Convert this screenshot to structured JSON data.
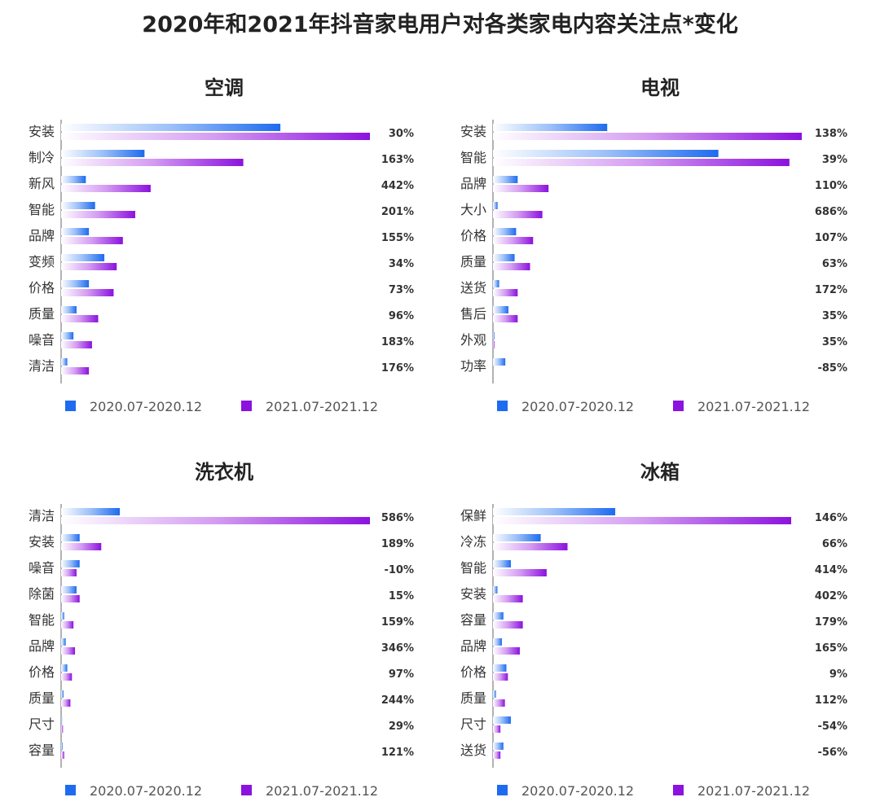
{
  "title": "2020年和2021年抖音家电用户对各类家电内容关注点*变化",
  "legend": {
    "series_2020": "2020.07-2020.12",
    "series_2021": "2021.07-2021.12"
  },
  "colors": {
    "series_2020": "#1e6bf0",
    "series_2021": "#8c12de",
    "axis": "#666666",
    "text": "#333333"
  },
  "chart_data": [
    {
      "type": "bar",
      "title": "空调",
      "categories": [
        "安装",
        "制冷",
        "新风",
        "智能",
        "品牌",
        "变频",
        "价格",
        "质量",
        "噪音",
        "清洁"
      ],
      "series": [
        {
          "name": "2020.07-2020.12",
          "values": [
            71,
            27,
            8,
            11,
            9,
            14,
            9,
            5,
            4,
            2
          ]
        },
        {
          "name": "2021.07-2021.12",
          "values": [
            100,
            59,
            29,
            24,
            20,
            18,
            17,
            12,
            10,
            9
          ]
        }
      ],
      "change_labels": [
        "30%",
        "163%",
        "442%",
        "201%",
        "155%",
        "34%",
        "73%",
        "96%",
        "183%",
        "176%"
      ],
      "xlim": [
        0,
        100
      ]
    },
    {
      "type": "bar",
      "title": "电视",
      "categories": [
        "安装",
        "智能",
        "品牌",
        "大小",
        "价格",
        "质量",
        "送货",
        "售后",
        "外观",
        "功率"
      ],
      "series": [
        {
          "name": "2020.07-2020.12",
          "values": [
            37,
            73,
            8,
            1.5,
            7.5,
            7,
            2,
            5,
            0.5,
            4
          ]
        },
        {
          "name": "2021.07-2021.12",
          "values": [
            100,
            96,
            18,
            16,
            13,
            12,
            8,
            8,
            0.5,
            0
          ]
        }
      ],
      "change_labels": [
        "138%",
        "39%",
        "110%",
        "686%",
        "107%",
        "63%",
        "172%",
        "35%",
        "35%",
        "-85%"
      ],
      "xlim": [
        0,
        100
      ]
    },
    {
      "type": "bar",
      "title": "洗衣机",
      "categories": [
        "清洁",
        "安装",
        "噪音",
        "除菌",
        "智能",
        "品牌",
        "价格",
        "质量",
        "尺寸",
        "容量"
      ],
      "series": [
        {
          "name": "2020.07-2020.12",
          "values": [
            19,
            6,
            6,
            5,
            1,
            1.5,
            2,
            0.8,
            0.3,
            0.5
          ]
        },
        {
          "name": "2021.07-2021.12",
          "values": [
            100,
            13,
            5,
            6,
            4,
            4.5,
            3.5,
            3,
            0.6,
            1
          ]
        }
      ],
      "change_labels": [
        "586%",
        "189%",
        "-10%",
        "15%",
        "159%",
        "346%",
        "97%",
        "244%",
        "29%",
        "121%"
      ],
      "xlim": [
        0,
        100
      ]
    },
    {
      "type": "bar",
      "title": "冰箱",
      "categories": [
        "保鲜",
        "冷冻",
        "智能",
        "安装",
        "容量",
        "品牌",
        "价格",
        "质量",
        "尺寸",
        "送货"
      ],
      "series": [
        {
          "name": "2020.07-2020.12",
          "values": [
            41,
            16,
            6,
            1.5,
            3.5,
            3,
            4.5,
            1,
            6,
            3.5
          ]
        },
        {
          "name": "2021.07-2021.12",
          "values": [
            100,
            25,
            18,
            10,
            10,
            9,
            5,
            4,
            2.5,
            2.5
          ]
        }
      ],
      "change_labels": [
        "146%",
        "66%",
        "414%",
        "402%",
        "179%",
        "165%",
        "9%",
        "112%",
        "-54%",
        "-56%"
      ],
      "xlim": [
        0,
        100
      ]
    }
  ]
}
